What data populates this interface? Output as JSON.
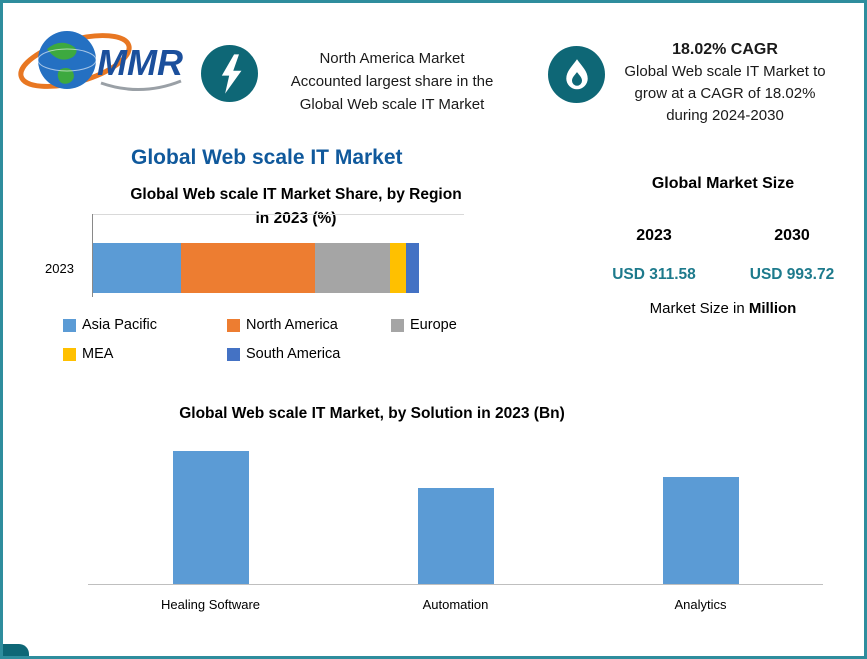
{
  "page": {
    "border_color": "#2e8d9d",
    "background": "#ffffff",
    "accent_teal": "#0e6776",
    "title_blue": "#10599c",
    "value_teal": "#1d7a8c"
  },
  "logo": {
    "text": "MMR"
  },
  "header": {
    "highlight1": {
      "icon": "lightning-bolt-icon",
      "line1": "North America Market",
      "line2": "Accounted largest share in the",
      "line3": "Global Web scale IT Market"
    },
    "highlight2": {
      "icon": "flame-icon",
      "title": "18.02% CAGR",
      "line1": "Global Web scale IT Market to",
      "line2": "grow at a CAGR of 18.02%",
      "line3": "during 2024-2030"
    }
  },
  "main": {
    "title": "Global Web scale IT Market"
  },
  "market_size": {
    "title": "Global Market Size",
    "years": [
      {
        "year": "2023",
        "value": "USD 311.58"
      },
      {
        "year": "2030",
        "value": "USD 993.72"
      }
    ],
    "note_prefix": "Market Size in ",
    "note_bold": "Million"
  },
  "chart_data": [
    {
      "type": "bar",
      "orientation": "horizontal-stacked",
      "title": "Global Web scale IT Market Share, by Region in 2023 (%)",
      "title_lines": [
        "Global Web scale IT Market Share, by Region",
        "in 2023 (%)"
      ],
      "categories": [
        "2023"
      ],
      "series": [
        {
          "name": "Asia Pacific",
          "value": 27,
          "color": "#5b9bd5"
        },
        {
          "name": "North America",
          "value": 41,
          "color": "#ed7d31"
        },
        {
          "name": "Europe",
          "value": 23,
          "color": "#a5a5a5"
        },
        {
          "name": "MEA",
          "value": 5,
          "color": "#ffc000"
        },
        {
          "name": "South America",
          "value": 4,
          "color": "#4472c4"
        }
      ],
      "legend_rows": [
        [
          "Asia Pacific",
          "North America",
          "Europe"
        ],
        [
          "MEA",
          "South America"
        ]
      ],
      "xlim": [
        0,
        100
      ],
      "legend_position": "bottom",
      "grid": false
    },
    {
      "type": "bar",
      "title": "Global Web scale IT Market, by Solution in 2023 (Bn)",
      "categories": [
        "Healing Software",
        "Automation",
        "Analytics"
      ],
      "values": [
        1.34,
        0.97,
        1.08
      ],
      "ylim": [
        0,
        1.5
      ],
      "bar_color": "#5b9bd5",
      "grid": false,
      "legend_position": "none"
    }
  ]
}
